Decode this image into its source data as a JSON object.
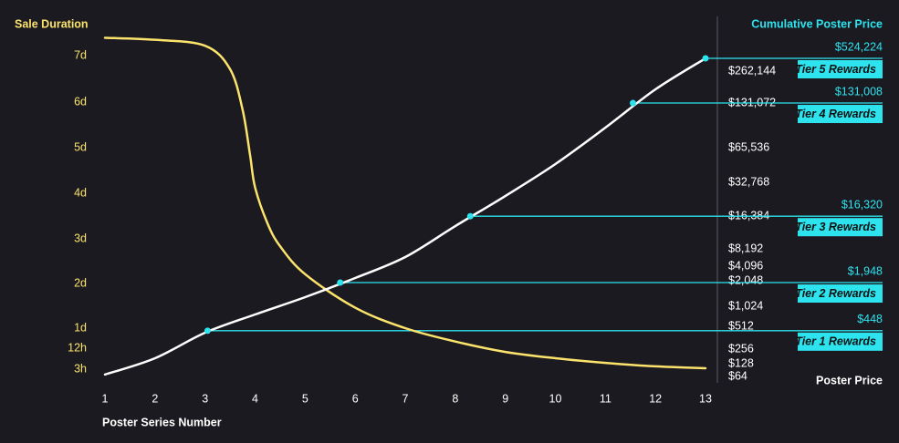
{
  "chart_data": {
    "type": "line",
    "y_label": "Sale Duration",
    "y2_label": "Cumulative Poster Price",
    "y2_unit_label": "Poster Price",
    "x_label": "Poster Series Number",
    "xlim": [
      1,
      13
    ],
    "xticks": [
      1,
      2,
      3,
      4,
      5,
      6,
      7,
      8,
      9,
      10,
      11,
      12,
      13
    ],
    "ylim": [
      3,
      180
    ],
    "yticks": [
      {
        "value": 3,
        "label": "3h"
      },
      {
        "value": 12,
        "label": "12h"
      },
      {
        "value": 24,
        "label": "1d"
      },
      {
        "value": 48,
        "label": "2d"
      },
      {
        "value": 72,
        "label": "3d"
      },
      {
        "value": 96,
        "label": "4d"
      },
      {
        "value": 120,
        "label": "5d"
      },
      {
        "value": 144,
        "label": "6d"
      },
      {
        "value": 168,
        "label": "7d"
      }
    ],
    "y2lim": [
      64,
      524288
    ],
    "y2ticks": [
      {
        "value": 64,
        "label": "$64"
      },
      {
        "value": 128,
        "label": "$128"
      },
      {
        "value": 256,
        "label": "$256"
      },
      {
        "value": 512,
        "label": "$512"
      },
      {
        "value": 1024,
        "label": "$1,024"
      },
      {
        "value": 2048,
        "label": "$2,048"
      },
      {
        "value": 4096,
        "label": "$4,096"
      },
      {
        "value": 8192,
        "label": "$8,192"
      },
      {
        "value": 16384,
        "label": "$16,384"
      },
      {
        "value": 32768,
        "label": "$32,768"
      },
      {
        "value": 65536,
        "label": "$65,536"
      },
      {
        "value": 131072,
        "label": "$131,072"
      },
      {
        "value": 262144,
        "label": "$262,144"
      }
    ],
    "y2log": true,
    "grid": false,
    "series": [
      {
        "axis": "y",
        "color": "#fbe36c",
        "x": [
          1,
          2,
          3,
          3.5,
          3.75,
          3.9,
          4,
          4.25,
          4.5,
          5,
          6,
          7,
          8,
          9,
          10,
          11,
          12,
          13
        ],
        "values": [
          177,
          176,
          173,
          161,
          140,
          116,
          99,
          80,
          68,
          53,
          35,
          24,
          16,
          10.4,
          7.7,
          5.7,
          4.2,
          3.4
        ]
      },
      {
        "axis": "y2",
        "color": "#ffffff",
        "x": [
          1,
          2,
          3,
          4,
          5,
          6,
          7,
          8,
          9,
          10,
          11,
          12,
          13
        ],
        "values": [
          71,
          166,
          422,
          771,
          1312,
          2333,
          5898,
          13255,
          24740,
          47190,
          89460,
          176400,
          524224
        ]
      }
    ],
    "annotations": {
      "axis": "y2",
      "color": "#2de3ee",
      "x": [
        3.05,
        5.7,
        8.3,
        11.55,
        13
      ],
      "values": [
        448,
        1948,
        16320,
        131008,
        524224
      ],
      "value_labels": [
        "$448",
        "$1,948",
        "$16,320",
        "$131,008",
        "$524,224"
      ],
      "labels": [
        "Tier 1 Rewards",
        "Tier 2 Rewards",
        "Tier 3 Rewards",
        "Tier 4 Rewards",
        "Tier 5 Rewards"
      ]
    }
  }
}
